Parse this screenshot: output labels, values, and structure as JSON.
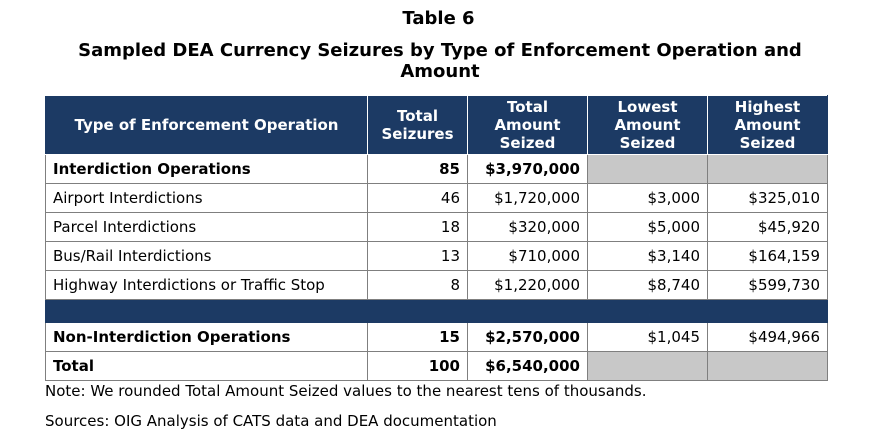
{
  "title": "Table 6",
  "subtitle": "Sampled DEA Currency Seizures by Type of Enforcement Operation and Amount",
  "columns": {
    "type": "Type of Enforcement Operation",
    "total_seizures": "Total Seizures",
    "total_amount": "Total Amount Seized",
    "lowest_amount": "Lowest Amount Seized",
    "highest_amount": "Highest Amount Seized"
  },
  "rows": [
    {
      "type": "Interdiction Operations",
      "total_seizures": "85",
      "total_amount": "$3,970,000",
      "lowest_amount": "",
      "highest_amount": ""
    },
    {
      "type": "Airport Interdictions",
      "total_seizures": "46",
      "total_amount": "$1,720,000",
      "lowest_amount": "$3,000",
      "highest_amount": "$325,010"
    },
    {
      "type": "Parcel Interdictions",
      "total_seizures": "18",
      "total_amount": "$320,000",
      "lowest_amount": "$5,000",
      "highest_amount": "$45,920"
    },
    {
      "type": "Bus/Rail Interdictions",
      "total_seizures": "13",
      "total_amount": "$710,000",
      "lowest_amount": "$3,140",
      "highest_amount": "$164,159"
    },
    {
      "type": "Highway Interdictions or Traffic Stop",
      "total_seizures": "8",
      "total_amount": "$1,220,000",
      "lowest_amount": "$8,740",
      "highest_amount": "$599,730"
    },
    {
      "type": "Non-Interdiction Operations",
      "total_seizures": "15",
      "total_amount": "$2,570,000",
      "lowest_amount": "$1,045",
      "highest_amount": "$494,966"
    },
    {
      "type": "Total",
      "total_seizures": "100",
      "total_amount": "$6,540,000",
      "lowest_amount": "",
      "highest_amount": ""
    }
  ],
  "note": "Note:  We rounded Total Amount Seized values to the nearest tens of thousands.",
  "sources": "Sources:  OIG Analysis of CATS data and DEA documentation",
  "colors": {
    "header_bg": "#1c3a64",
    "header_text": "#ffffff",
    "empty_cell": "#c8c8c8"
  }
}
